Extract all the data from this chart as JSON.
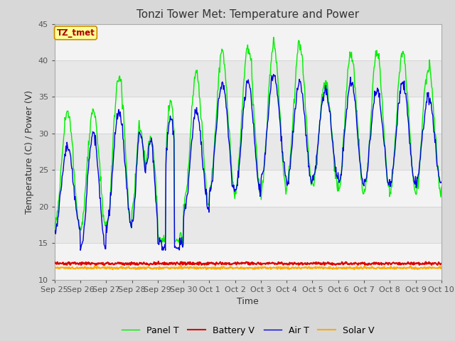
{
  "title": "Tonzi Tower Met: Temperature and Power",
  "xlabel": "Time",
  "ylabel": "Temperature (C) / Power (V)",
  "ylim": [
    10,
    45
  ],
  "yticks": [
    10,
    15,
    20,
    25,
    30,
    35,
    40,
    45
  ],
  "xtick_labels": [
    "Sep 25",
    "Sep 26",
    "Sep 27",
    "Sep 28",
    "Sep 29",
    "Sep 30",
    "Oct 1",
    "Oct 2",
    "Oct 3",
    "Oct 4",
    "Oct 5",
    "Oct 6",
    "Oct 7",
    "Oct 8",
    "Oct 9",
    "Oct 10"
  ],
  "bg_color": "#d8d8d8",
  "plot_bg_color": "#e8e8e8",
  "panel_t_color": "#00ee00",
  "battery_v_color": "#dd0000",
  "air_t_color": "#0000dd",
  "solar_v_color": "#ffaa00",
  "tz_label": "TZ_tmet",
  "tz_text_color": "#aa0000",
  "tz_box_color": "#ffff99",
  "legend_labels": [
    "Panel T",
    "Battery V",
    "Air T",
    "Solar V"
  ]
}
